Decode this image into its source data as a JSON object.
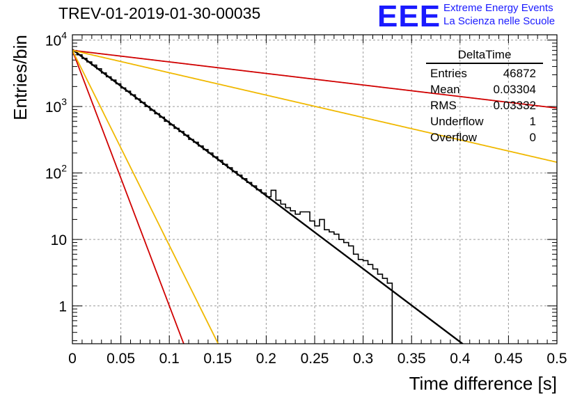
{
  "title": "TREV-01-2019-01-30-00035",
  "logo": {
    "mark": "EEE",
    "line1": "Extreme Energy Events",
    "line2": "La Scienza nelle Scuole",
    "color": "#1a1aff"
  },
  "stats": {
    "name": "DeltaTime",
    "rows": [
      {
        "label": "Entries",
        "value": "46872"
      },
      {
        "label": "Mean",
        "value": "0.03304"
      },
      {
        "label": "RMS",
        "value": "0.03332"
      },
      {
        "label": "Underflow",
        "value": "1"
      },
      {
        "label": "Overflow",
        "value": "0"
      }
    ]
  },
  "chart_data": {
    "type": "line",
    "title": "TREV-01-2019-01-30-00035",
    "xlabel": "Time difference [s]",
    "ylabel": "Entries/bin",
    "xlim": [
      0,
      0.5
    ],
    "ylim": [
      0.27,
      12000
    ],
    "log_y": true,
    "grid": true,
    "x_ticks": [
      0,
      0.05,
      0.1,
      0.15,
      0.2,
      0.25,
      0.3,
      0.35,
      0.4,
      0.45,
      0.5
    ],
    "x_tick_labels": [
      "0",
      "0.05",
      "0.1",
      "0.15",
      "0.2",
      "0.25",
      "0.3",
      "0.35",
      "0.4",
      "0.45",
      "0.5"
    ],
    "y_ticks": [
      1,
      10,
      100,
      1000,
      10000
    ],
    "y_tick_labels": [
      {
        "base": "1",
        "exp": ""
      },
      {
        "base": "10",
        "exp": ""
      },
      {
        "base": "10",
        "exp": "2"
      },
      {
        "base": "10",
        "exp": "3"
      },
      {
        "base": "10",
        "exp": "4"
      }
    ],
    "histogram": {
      "bin_width": 0.005,
      "x_start": 0,
      "counts": [
        6800,
        6000,
        5300,
        4700,
        4200,
        3700,
        3200,
        2800,
        2500,
        2200,
        1900,
        1700,
        1500,
        1300,
        1150,
        1000,
        880,
        780,
        690,
        600,
        530,
        470,
        420,
        370,
        320,
        290,
        255,
        225,
        200,
        175,
        155,
        135,
        120,
        105,
        93,
        82,
        72,
        64,
        56,
        50,
        44,
        55,
        39,
        34,
        30,
        27,
        24,
        26,
        26,
        19,
        16,
        20,
        14,
        13,
        12,
        10,
        9,
        8,
        6,
        5,
        4.8,
        4.2,
        3.6,
        3,
        2.6,
        2.2,
        0,
        0,
        0,
        0,
        0,
        0,
        0,
        0,
        0,
        0,
        0,
        0,
        0,
        0,
        0,
        0,
        0,
        0,
        0,
        0,
        0,
        0,
        0,
        0,
        0,
        0,
        0,
        0,
        0,
        0,
        0,
        0,
        0,
        0
      ],
      "color": "#000000"
    },
    "fits": [
      {
        "x0": 0,
        "y0": 7200,
        "tau": 0.0395,
        "color": "#000000"
      },
      {
        "x0": 0,
        "y0": 7000,
        "tau": 0.0113,
        "color": "#d00000"
      },
      {
        "x0": 0,
        "y0": 7000,
        "tau": 0.0148,
        "color": "#f0b800"
      },
      {
        "x0": 0,
        "y0": 7000,
        "tau": 0.25,
        "color": "#d00000"
      },
      {
        "x0": 0,
        "y0": 7000,
        "tau": 0.129,
        "color": "#f0b800"
      }
    ]
  }
}
